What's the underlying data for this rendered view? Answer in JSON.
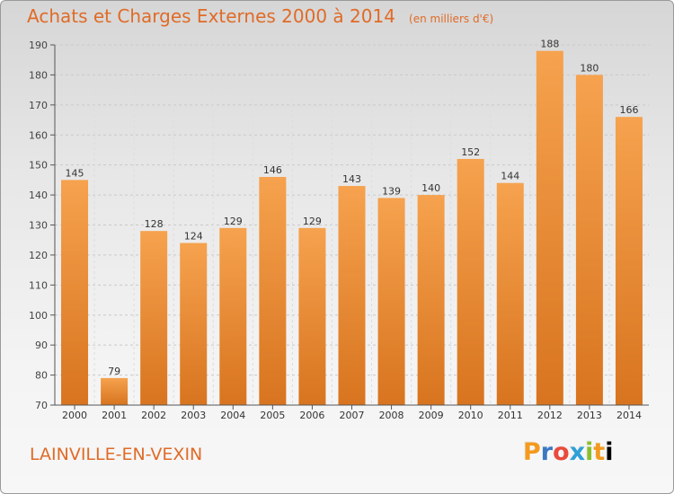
{
  "chart_data": {
    "type": "bar",
    "title": "Achats et Charges Externes 2000 à 2014",
    "unit_note": "(en milliers d'€)",
    "categories": [
      "2000",
      "2001",
      "2002",
      "2003",
      "2004",
      "2005",
      "2006",
      "2007",
      "2008",
      "2009",
      "2010",
      "2011",
      "2012",
      "2013",
      "2014"
    ],
    "values": [
      145,
      79,
      128,
      124,
      129,
      146,
      129,
      143,
      139,
      140,
      152,
      144,
      188,
      180,
      166
    ],
    "ylim": [
      70,
      190
    ],
    "yticks": [
      70,
      80,
      90,
      100,
      110,
      120,
      130,
      140,
      150,
      160,
      170,
      180,
      190
    ],
    "grid": true,
    "legend": "none",
    "colors": {
      "bar_light": "#f6a24e",
      "bar_dark": "#d8741f",
      "title": "#e06b27",
      "axis": "#555555",
      "grid": "#c9c9c9"
    }
  },
  "footer": {
    "commune": "LAINVILLE-EN-VEXIN",
    "brand": "Proxiti"
  }
}
